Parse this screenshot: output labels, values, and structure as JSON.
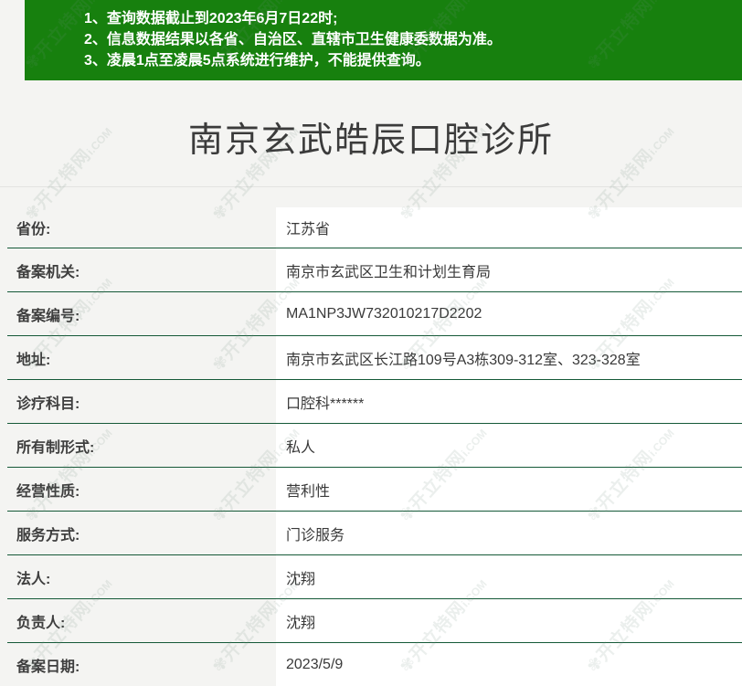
{
  "page": {
    "background": "#f4f4f2"
  },
  "banner": {
    "background": "#17800E",
    "notices": [
      "1、查询数据截止到2023年6月7日22时;",
      "2、信息数据结果以各省、自治区、直辖市卫生健康委数据为准。",
      "3、凌晨1点至凌晨5点系统进行维护，不能提供查询。"
    ]
  },
  "title": "南京玄武皓辰口腔诊所",
  "info_table": {
    "separator_color": "#155938",
    "rows": [
      {
        "label": "省份:",
        "value": "江苏省"
      },
      {
        "label": "备案机关:",
        "value": "南京市玄武区卫生和计划生育局"
      },
      {
        "label": "备案编号:",
        "value": "MA1NP3JW732010217D2202"
      },
      {
        "label": "地址:",
        "value": "南京市玄武区长江路109号A3栋309-312室、323-328室"
      },
      {
        "label": "诊疗科目:",
        "value": "口腔科******"
      },
      {
        "label": "所有制形式:",
        "value": "私人"
      },
      {
        "label": "经营性质:",
        "value": "营利性"
      },
      {
        "label": "服务方式:",
        "value": "门诊服务"
      },
      {
        "label": "法人:",
        "value": "沈翔"
      },
      {
        "label": "负责人:",
        "value": "沈翔"
      },
      {
        "label": "备案日期:",
        "value": "2023/5/9"
      }
    ]
  },
  "watermark": {
    "brand": "开立特网",
    "domain": "i.COM",
    "icon": "flower-logo"
  }
}
